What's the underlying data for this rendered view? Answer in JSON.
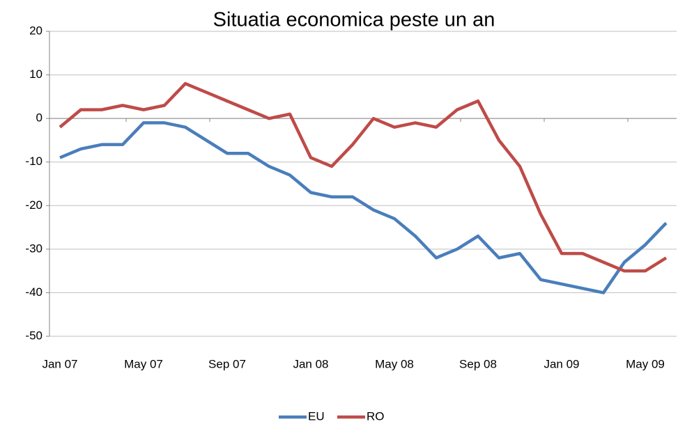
{
  "chart_data": {
    "type": "line",
    "title": "Situatia economica peste un an",
    "categories": [
      "Jan 07",
      null,
      null,
      null,
      "May 07",
      null,
      null,
      null,
      "Sep 07",
      null,
      null,
      null,
      "Jan 08",
      null,
      null,
      null,
      "May 08",
      null,
      null,
      null,
      "Sep 08",
      null,
      null,
      null,
      "Jan 09",
      null,
      null,
      null,
      "May 09",
      null
    ],
    "series": [
      {
        "name": "EU",
        "color": "#4a7ebb",
        "values": [
          -9,
          -7,
          -6,
          -6,
          -1,
          -1,
          -2,
          -5,
          -8,
          -8,
          -11,
          -13,
          -17,
          -18,
          -18,
          -21,
          -23,
          -27,
          -32,
          -30,
          -27,
          -32,
          -31,
          -37,
          -38,
          -39,
          -40,
          -33,
          -29,
          -24
        ]
      },
      {
        "name": "RO",
        "color": "#be4b48",
        "values": [
          -2,
          2,
          2,
          3,
          2,
          3,
          8,
          6,
          4,
          2,
          0,
          1,
          -9,
          -11,
          -6,
          0,
          -2,
          -1,
          -2,
          2,
          4,
          -5,
          -11,
          -22,
          -31,
          -31,
          -33,
          -35,
          -35,
          -32
        ]
      }
    ],
    "ylim": [
      -50,
      20
    ],
    "yticks": [
      -50,
      -40,
      -30,
      -20,
      -10,
      0,
      10,
      20
    ],
    "grid": true,
    "legend": "bottom"
  }
}
